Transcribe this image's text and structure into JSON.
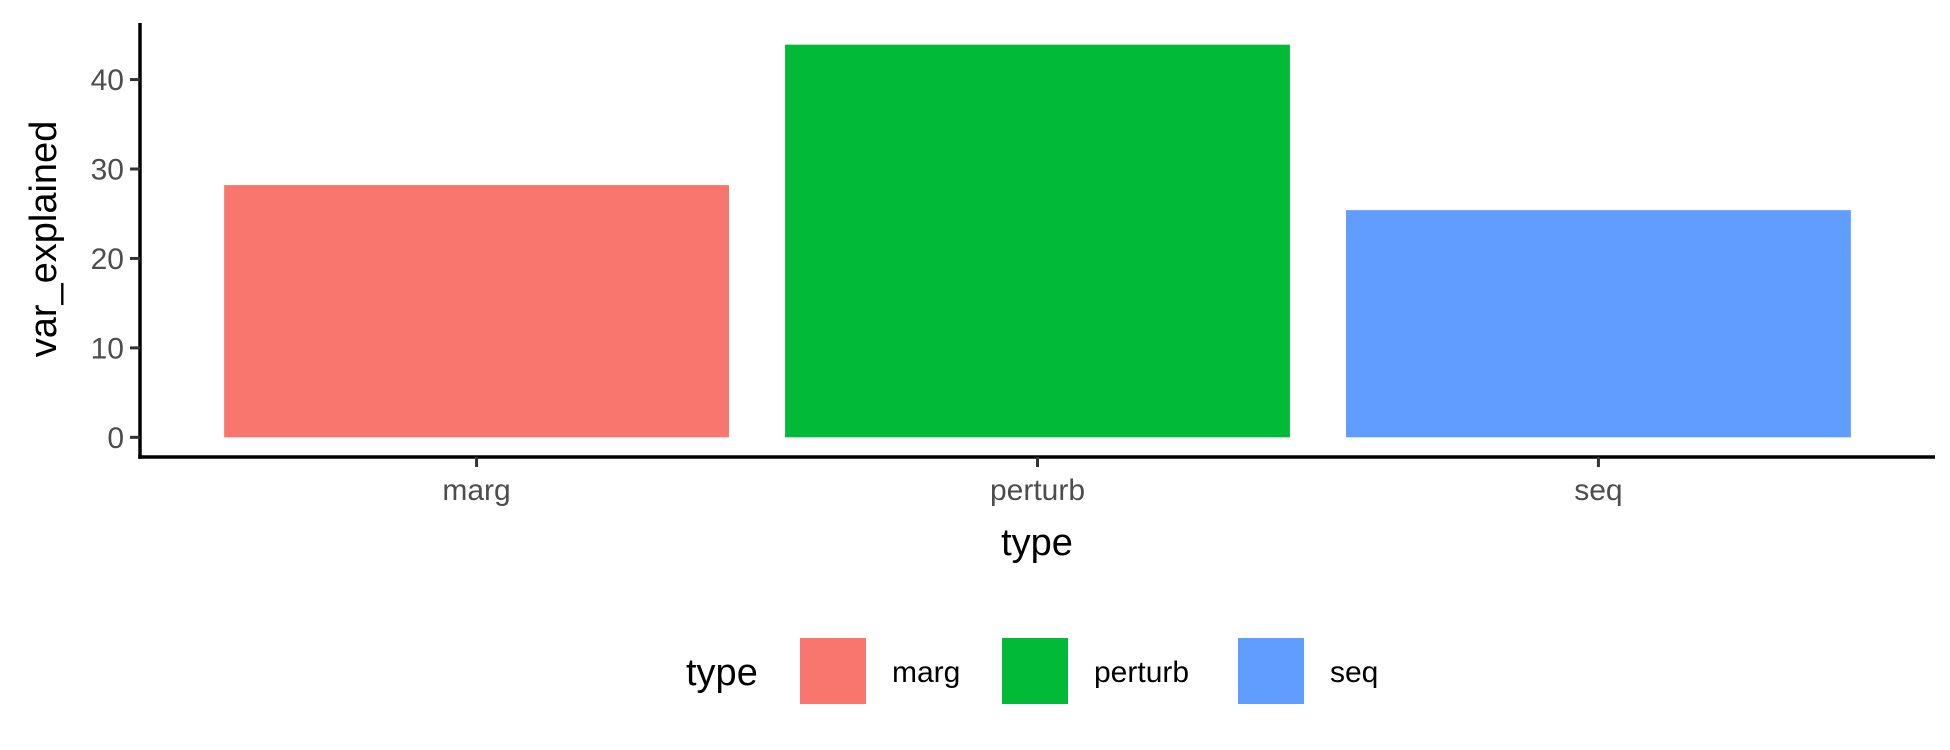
{
  "chart_data": {
    "type": "bar",
    "categories": [
      "marg",
      "perturb",
      "seq"
    ],
    "values": [
      28.2,
      43.9,
      25.4
    ],
    "colors": [
      "#F8766D",
      "#00BA38",
      "#619CFF"
    ],
    "xlabel": "type",
    "ylabel": "var_explained",
    "ylim": [
      -2.2,
      46.1
    ],
    "yticks": [
      0,
      10,
      20,
      30,
      40
    ],
    "ytick_labels": [
      "0",
      "10",
      "20",
      "30",
      "40"
    ],
    "grid": false,
    "legend": {
      "title": "type",
      "position": "bottom",
      "entries": [
        "marg",
        "perturb",
        "seq"
      ]
    }
  }
}
